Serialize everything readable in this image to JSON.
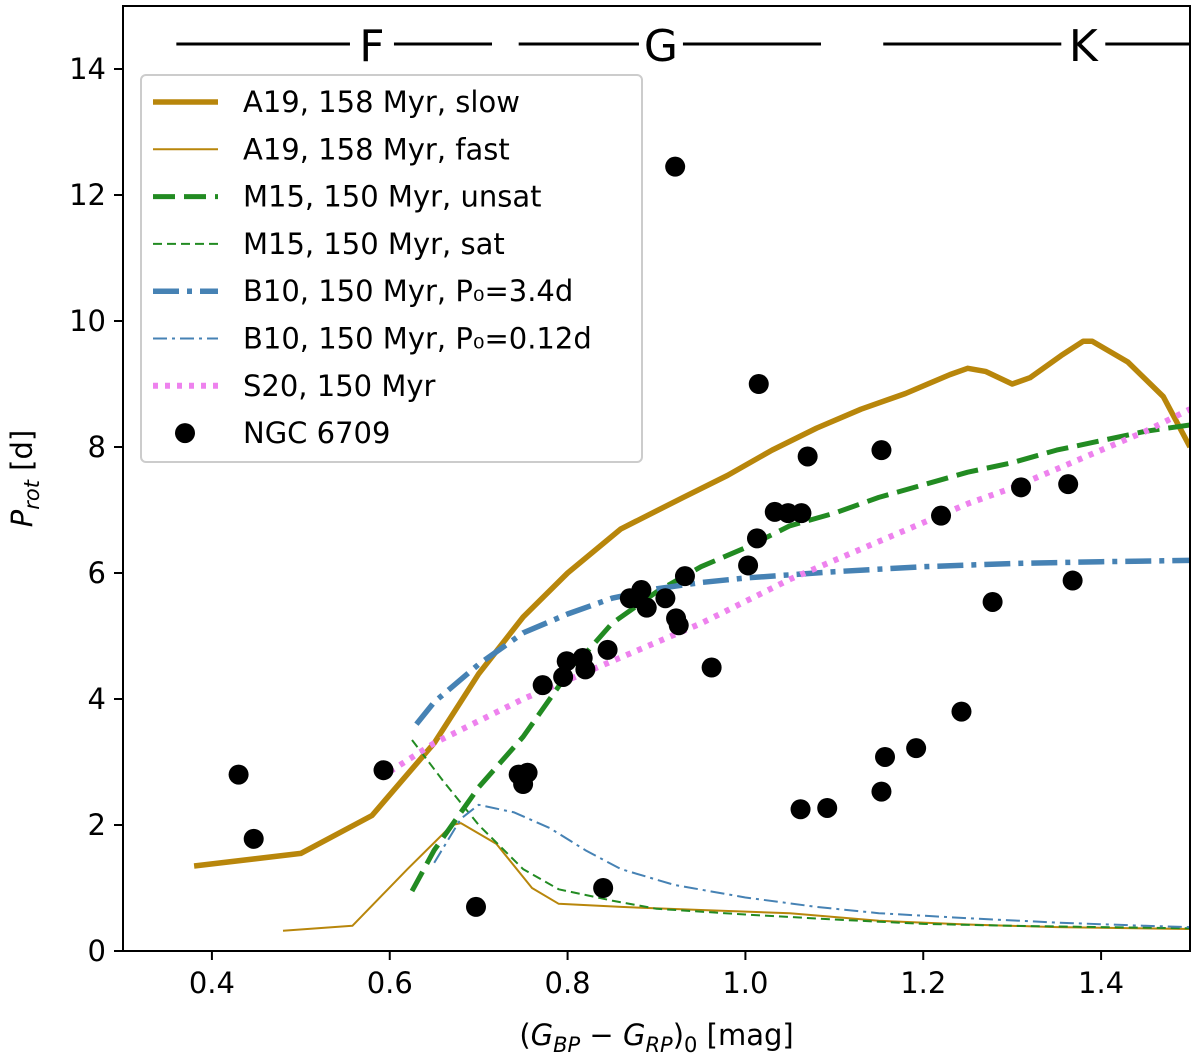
{
  "chart_data": {
    "type": "line",
    "xlabel_parts": [
      "(",
      "G",
      "BP",
      " − ",
      "G",
      "RP",
      ")",
      "0",
      " [mag]"
    ],
    "ylabel_parts": [
      "P",
      "rot",
      " [d]"
    ],
    "xlim": [
      0.3,
      1.5
    ],
    "ylim": [
      0,
      15
    ],
    "xticks": [
      0.4,
      0.6,
      0.8,
      1.0,
      1.2,
      1.4
    ],
    "xtick_labels": [
      "0.4",
      "0.6",
      "0.8",
      "1.0",
      "1.2",
      "1.4"
    ],
    "yticks": [
      0,
      2,
      4,
      6,
      8,
      10,
      12,
      14
    ],
    "ytick_labels": [
      "0",
      "2",
      "4",
      "6",
      "8",
      "10",
      "12",
      "14"
    ],
    "grid": false,
    "legend_position": "upper-left",
    "spectral_types": [
      {
        "label": "F",
        "x_start": 0.36,
        "x_end": 0.715,
        "x_label": 0.58
      },
      {
        "label": "G",
        "x_start": 0.745,
        "x_end": 1.085,
        "x_label": 0.905
      },
      {
        "label": "K",
        "x_start": 1.155,
        "x_end": 1.5,
        "x_label": 1.38
      }
    ],
    "series": [
      {
        "name": "A19, 158 Myr, slow",
        "color": "#b8860b",
        "style": "solid",
        "width": 5.5,
        "points": [
          [
            0.38,
            1.35
          ],
          [
            0.5,
            1.55
          ],
          [
            0.58,
            2.15
          ],
          [
            0.65,
            3.3
          ],
          [
            0.7,
            4.4
          ],
          [
            0.75,
            5.3
          ],
          [
            0.8,
            6.0
          ],
          [
            0.86,
            6.7
          ],
          [
            0.93,
            7.2
          ],
          [
            0.98,
            7.55
          ],
          [
            1.03,
            7.95
          ],
          [
            1.08,
            8.3
          ],
          [
            1.13,
            8.6
          ],
          [
            1.18,
            8.85
          ],
          [
            1.23,
            9.15
          ],
          [
            1.25,
            9.25
          ],
          [
            1.27,
            9.2
          ],
          [
            1.3,
            9.0
          ],
          [
            1.32,
            9.1
          ],
          [
            1.355,
            9.45
          ],
          [
            1.38,
            9.68
          ],
          [
            1.39,
            9.68
          ],
          [
            1.43,
            9.35
          ],
          [
            1.47,
            8.8
          ],
          [
            1.5,
            8.0
          ]
        ]
      },
      {
        "name": "A19, 158 Myr, fast",
        "color": "#b8860b",
        "style": "solid",
        "width": 2,
        "points": [
          [
            0.48,
            0.32
          ],
          [
            0.558,
            0.4
          ],
          [
            0.62,
            1.3
          ],
          [
            0.67,
            2.0
          ],
          [
            0.68,
            2.03
          ],
          [
            0.72,
            1.7
          ],
          [
            0.76,
            1.0
          ],
          [
            0.79,
            0.75
          ],
          [
            0.86,
            0.7
          ],
          [
            0.95,
            0.65
          ],
          [
            1.05,
            0.6
          ],
          [
            1.15,
            0.48
          ],
          [
            1.25,
            0.42
          ],
          [
            1.35,
            0.38
          ],
          [
            1.5,
            0.35
          ]
        ]
      },
      {
        "name": "M15, 150 Myr, unsat",
        "color": "#228b22",
        "style": "dashed",
        "width": 5,
        "points": [
          [
            0.625,
            0.95
          ],
          [
            0.65,
            1.6
          ],
          [
            0.7,
            2.6
          ],
          [
            0.75,
            3.4
          ],
          [
            0.8,
            4.4
          ],
          [
            0.85,
            5.2
          ],
          [
            0.9,
            5.7
          ],
          [
            0.95,
            6.1
          ],
          [
            1.0,
            6.4
          ],
          [
            1.05,
            6.75
          ],
          [
            1.1,
            6.95
          ],
          [
            1.15,
            7.2
          ],
          [
            1.2,
            7.4
          ],
          [
            1.25,
            7.6
          ],
          [
            1.3,
            7.75
          ],
          [
            1.35,
            7.95
          ],
          [
            1.4,
            8.1
          ],
          [
            1.45,
            8.25
          ],
          [
            1.5,
            8.35
          ]
        ]
      },
      {
        "name": "M15, 150 Myr, sat",
        "color": "#228b22",
        "style": "dashed",
        "width": 2,
        "points": [
          [
            0.625,
            3.35
          ],
          [
            0.66,
            2.7
          ],
          [
            0.7,
            2.0
          ],
          [
            0.75,
            1.3
          ],
          [
            0.79,
            0.98
          ],
          [
            0.85,
            0.8
          ],
          [
            0.9,
            0.67
          ],
          [
            1.0,
            0.58
          ],
          [
            1.1,
            0.5
          ],
          [
            1.2,
            0.43
          ],
          [
            1.3,
            0.4
          ],
          [
            1.4,
            0.38
          ],
          [
            1.5,
            0.36
          ]
        ]
      },
      {
        "name": "B10, 150 Myr, P₀=3.4d",
        "color": "#4682b4",
        "style": "dashdot",
        "width": 5.5,
        "points": [
          [
            0.63,
            3.6
          ],
          [
            0.65,
            3.95
          ],
          [
            0.7,
            4.55
          ],
          [
            0.75,
            5.05
          ],
          [
            0.8,
            5.35
          ],
          [
            0.85,
            5.6
          ],
          [
            0.9,
            5.75
          ],
          [
            0.95,
            5.85
          ],
          [
            1.0,
            5.92
          ],
          [
            1.1,
            6.02
          ],
          [
            1.2,
            6.1
          ],
          [
            1.3,
            6.15
          ],
          [
            1.4,
            6.18
          ],
          [
            1.5,
            6.2
          ]
        ]
      },
      {
        "name": "B10, 150 Myr, P₀=0.12d",
        "color": "#4682b4",
        "style": "dashdot",
        "width": 2,
        "points": [
          [
            0.65,
            1.4
          ],
          [
            0.68,
            2.1
          ],
          [
            0.7,
            2.32
          ],
          [
            0.74,
            2.2
          ],
          [
            0.78,
            1.95
          ],
          [
            0.82,
            1.6
          ],
          [
            0.86,
            1.3
          ],
          [
            0.92,
            1.05
          ],
          [
            1.0,
            0.85
          ],
          [
            1.08,
            0.7
          ],
          [
            1.15,
            0.6
          ],
          [
            1.25,
            0.52
          ],
          [
            1.35,
            0.45
          ],
          [
            1.45,
            0.4
          ],
          [
            1.5,
            0.38
          ]
        ]
      },
      {
        "name": "S20, 150 Myr",
        "color": "#ee82ee",
        "style": "dotted",
        "width": 6,
        "points": [
          [
            0.6,
            2.85
          ],
          [
            0.65,
            3.3
          ],
          [
            0.7,
            3.65
          ],
          [
            0.75,
            4.0
          ],
          [
            0.8,
            4.3
          ],
          [
            0.85,
            4.6
          ],
          [
            0.9,
            4.9
          ],
          [
            0.95,
            5.2
          ],
          [
            1.0,
            5.55
          ],
          [
            1.05,
            5.9
          ],
          [
            1.1,
            6.2
          ],
          [
            1.15,
            6.5
          ],
          [
            1.2,
            6.8
          ],
          [
            1.25,
            7.1
          ],
          [
            1.3,
            7.35
          ],
          [
            1.35,
            7.65
          ],
          [
            1.4,
            7.95
          ],
          [
            1.45,
            8.25
          ],
          [
            1.5,
            8.6
          ]
        ]
      },
      {
        "name": "NGC 6709",
        "color": "#000000",
        "style": "markers",
        "points": [
          [
            0.43,
            2.8
          ],
          [
            0.447,
            1.78
          ],
          [
            0.593,
            2.87
          ],
          [
            0.697,
            0.7
          ],
          [
            0.745,
            2.8
          ],
          [
            0.75,
            2.65
          ],
          [
            0.755,
            2.83
          ],
          [
            0.772,
            4.22
          ],
          [
            0.795,
            4.35
          ],
          [
            0.799,
            4.6
          ],
          [
            0.817,
            4.65
          ],
          [
            0.82,
            4.47
          ],
          [
            0.84,
            1.0
          ],
          [
            0.845,
            4.78
          ],
          [
            0.87,
            5.6
          ],
          [
            0.878,
            5.6
          ],
          [
            0.883,
            5.73
          ],
          [
            0.889,
            5.45
          ],
          [
            0.91,
            5.6
          ],
          [
            0.921,
            12.45
          ],
          [
            0.922,
            5.28
          ],
          [
            0.925,
            5.17
          ],
          [
            0.932,
            5.95
          ],
          [
            0.962,
            4.5
          ],
          [
            1.003,
            6.12
          ],
          [
            1.013,
            6.55
          ],
          [
            1.015,
            9.0
          ],
          [
            1.033,
            6.97
          ],
          [
            1.048,
            6.95
          ],
          [
            1.062,
            2.25
          ],
          [
            1.063,
            6.95
          ],
          [
            1.07,
            7.85
          ],
          [
            1.092,
            2.27
          ],
          [
            1.153,
            7.95
          ],
          [
            1.153,
            2.53
          ],
          [
            1.157,
            3.08
          ],
          [
            1.192,
            3.22
          ],
          [
            1.22,
            6.91
          ],
          [
            1.243,
            3.8
          ],
          [
            1.278,
            5.54
          ],
          [
            1.31,
            7.36
          ],
          [
            1.363,
            7.41
          ],
          [
            1.368,
            5.88
          ]
        ]
      }
    ]
  }
}
